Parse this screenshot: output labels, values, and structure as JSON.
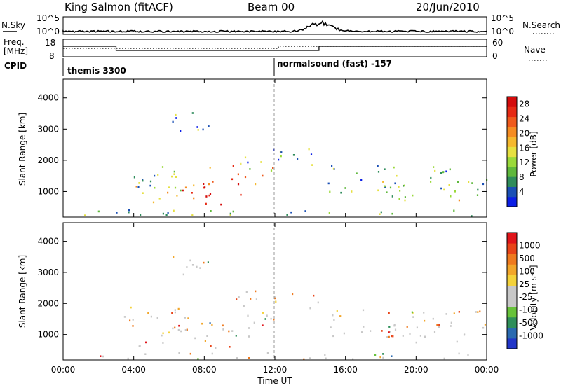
{
  "header": {
    "radar": "King Salmon (fitACF)",
    "beam": "Beam 00",
    "date": "20/Jun/2010"
  },
  "strip": {
    "nsky_label": "N.Sky",
    "nsky_ticks": [
      "10^5",
      "10^0"
    ],
    "nsearch_label": "N.Search",
    "nsearch_ticks": [
      "10^5",
      "10^0"
    ],
    "freq_label": "Freq.",
    "freq_unit": "[MHz]",
    "freq_ticks": [
      "18",
      "8"
    ],
    "nave_label": "Nave",
    "nave_ticks": [
      "60",
      "0"
    ],
    "cpid_label": "CPID",
    "cpid_segments": [
      {
        "label": "themis 3300",
        "start_hour": 0
      },
      {
        "label": "normalsound (fast) -157",
        "start_hour": 12
      }
    ]
  },
  "chart_data": [
    {
      "type": "heatmap",
      "name": "power",
      "ylabel": "Slant Range [km]",
      "xlabel": "Time UT",
      "xlim_hours": [
        0,
        24
      ],
      "x_ticks": [
        "00:00",
        "04:00",
        "08:00",
        "12:00",
        "16:00",
        "20:00",
        "00:00"
      ],
      "y_ticks": [
        1000,
        2000,
        3000,
        4000
      ],
      "ylim_km": [
        180,
        4600
      ],
      "colorbar": {
        "label": "Power [dB]",
        "ticks": [
          "4",
          "8",
          "12",
          "16",
          "20",
          "24",
          "28"
        ],
        "colors": [
          "#0b1ee6",
          "#1a4fb5",
          "#2f8c5b",
          "#5fb83c",
          "#9ad93a",
          "#e6e040",
          "#f5b82e",
          "#f58c22",
          "#ef5a1c",
          "#e62a14",
          "#d40c0c"
        ]
      },
      "regions": [
        {
          "t": [
            3.0,
            7.5
          ],
          "r": [
            1000,
            1900
          ],
          "level": 0.35
        },
        {
          "t": [
            4.0,
            6.5
          ],
          "r": [
            600,
            1200
          ],
          "level": 0.55
        },
        {
          "t": [
            6.5,
            10.5
          ],
          "r": [
            500,
            1400
          ],
          "level": 0.9
        },
        {
          "t": [
            8.0,
            12.0
          ],
          "r": [
            1200,
            1800
          ],
          "level": 0.6
        },
        {
          "t": [
            9.5,
            14.5
          ],
          "r": [
            1800,
            2400
          ],
          "level": 0.3
        },
        {
          "t": [
            6.0,
            8.5
          ],
          "r": [
            2700,
            3500
          ],
          "level": 0.25
        },
        {
          "t": [
            15.0,
            24.0
          ],
          "r": [
            900,
            1800
          ],
          "level": 0.3
        },
        {
          "t": [
            18.0,
            24.0
          ],
          "r": [
            700,
            1300
          ],
          "level": 0.5
        },
        {
          "t": [
            0.0,
            24.0
          ],
          "r": [
            180,
            400
          ],
          "level": 0.3
        }
      ]
    },
    {
      "type": "heatmap",
      "name": "velocity",
      "ylabel": "Slant Range [km]",
      "xlabel": "Time UT",
      "xlim_hours": [
        0,
        24
      ],
      "x_ticks": [
        "00:00",
        "04:00",
        "08:00",
        "12:00",
        "16:00",
        "20:00",
        "00:00"
      ],
      "y_ticks": [
        1000,
        2000,
        3000,
        4000
      ],
      "ylim_km": [
        180,
        4600
      ],
      "colorbar": {
        "label": "Velocity [m s⁻¹]",
        "ticks": [
          "1000",
          "500",
          "100",
          "25",
          "-25",
          "-100",
          "-500",
          "-1000"
        ],
        "colors": [
          "#2136c9",
          "#2a6ab0",
          "#2f8f5a",
          "#67c23a",
          "#c8c8c8",
          "#c8c8c8",
          "#f4d23a",
          "#f2a62a",
          "#ef7a1e",
          "#e84418",
          "#e0141a"
        ]
      },
      "regions": [
        {
          "t": [
            3.0,
            7.5
          ],
          "r": [
            1000,
            1900
          ],
          "level": 0.45
        },
        {
          "t": [
            4.0,
            6.5
          ],
          "r": [
            600,
            1200
          ],
          "level": 0.5
        },
        {
          "t": [
            6.5,
            10.5
          ],
          "r": [
            500,
            1400
          ],
          "level": 0.55
        },
        {
          "t": [
            8.0,
            12.0
          ],
          "r": [
            1200,
            1800
          ],
          "level": 0.5
        },
        {
          "t": [
            9.5,
            14.5
          ],
          "r": [
            1800,
            2400
          ],
          "level": 0.5
        },
        {
          "t": [
            6.0,
            8.5
          ],
          "r": [
            2700,
            3500
          ],
          "level": 0.5
        },
        {
          "t": [
            15.0,
            24.0
          ],
          "r": [
            900,
            1800
          ],
          "level": 0.5
        },
        {
          "t": [
            18.0,
            24.0
          ],
          "r": [
            700,
            1300
          ],
          "level": 0.5
        },
        {
          "t": [
            0.0,
            24.0
          ],
          "r": [
            180,
            400
          ],
          "level": 0.5
        }
      ]
    }
  ]
}
